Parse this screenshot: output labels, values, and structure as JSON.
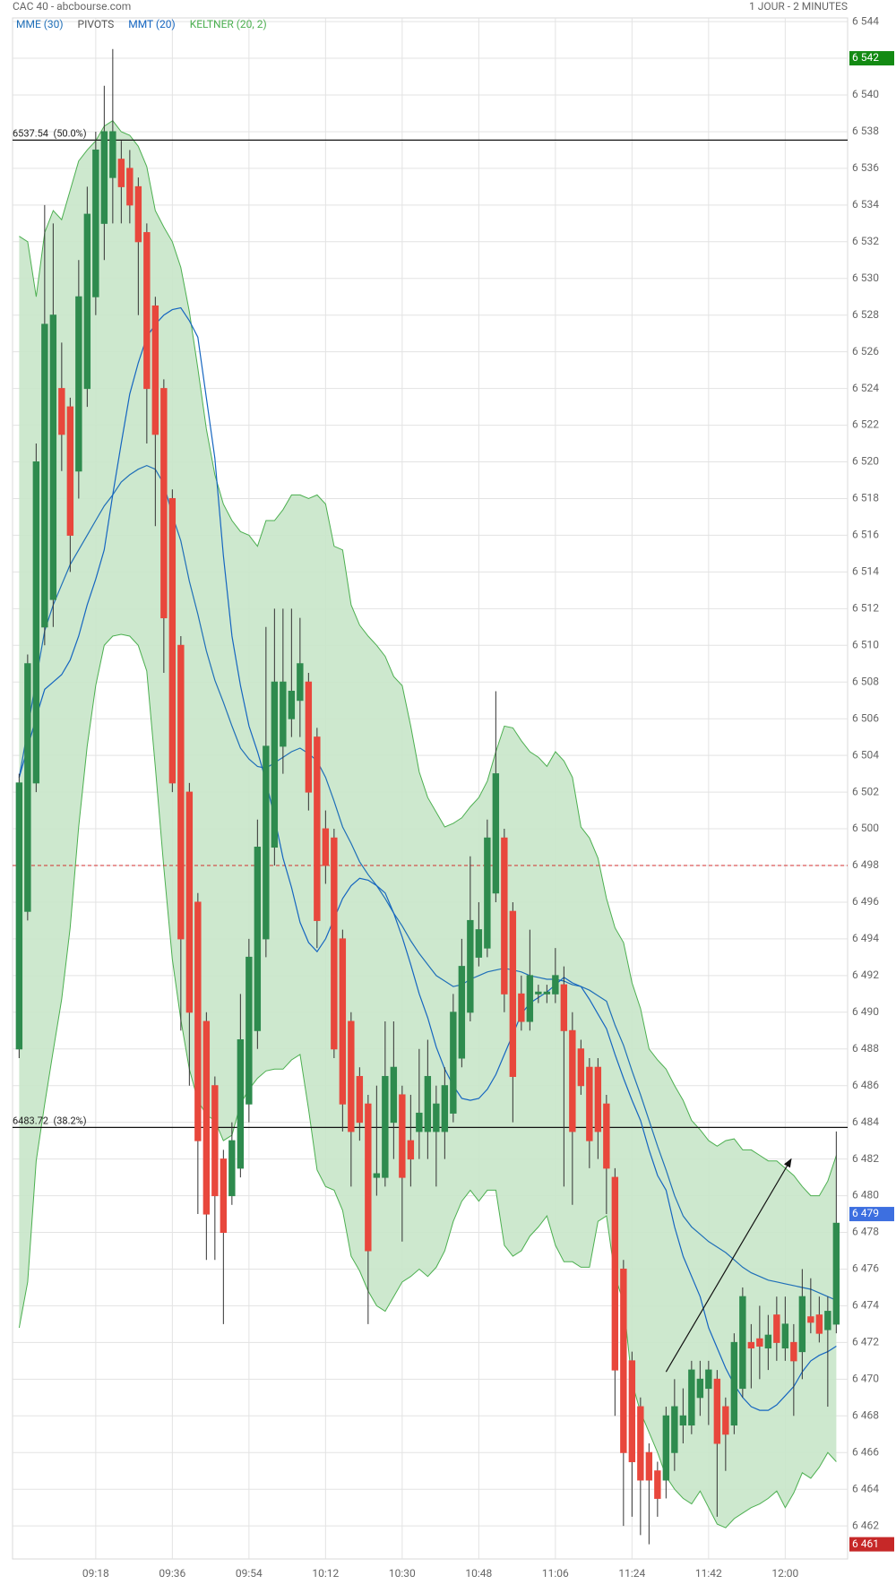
{
  "header": {
    "title": "CAC 40 - abcbourse.com",
    "period": "1 JOUR - 2 MINUTES"
  },
  "chart_data": {
    "type": "candlestick",
    "categories": [
      null,
      null,
      null,
      null,
      null,
      null,
      null,
      null,
      null,
      "09:18",
      null,
      null,
      null,
      null,
      null,
      null,
      null,
      null,
      "09:36",
      null,
      null,
      null,
      null,
      null,
      null,
      null,
      null,
      "09:54",
      null,
      null,
      null,
      null,
      null,
      null,
      null,
      null,
      "10:12",
      null,
      null,
      null,
      null,
      null,
      null,
      null,
      null,
      "10:30",
      null,
      null,
      null,
      null,
      null,
      null,
      null,
      null,
      "10:48",
      null,
      null,
      null,
      null,
      null,
      null,
      null,
      null,
      "11:06",
      null,
      null,
      null,
      null,
      null,
      null,
      null,
      null,
      "11:24",
      null,
      null,
      null,
      null,
      null,
      null,
      null,
      null,
      "11:42",
      null,
      null,
      null,
      null,
      null,
      null,
      null,
      null,
      "12:00",
      null,
      null,
      null,
      null,
      null,
      null
    ],
    "open": [
      6488,
      6495.5,
      6502.5,
      6511,
      6512.5,
      6524,
      6523,
      6519.5,
      6524,
      6529,
      6533,
      6535.5,
      6536.5,
      6536,
      6535,
      6532.5,
      6528.5,
      6524,
      6518,
      6510,
      6502,
      6496,
      6489.5,
      6486,
      6482,
      6480,
      6481.5,
      6485,
      6489,
      6494,
      6499,
      6504.5,
      6506,
      6507,
      6508,
      6505,
      6500,
      6499.5,
      6494,
      6489.5,
      6486.5,
      6485,
      6481,
      6481,
      6484,
      6485.5,
      6483,
      6483.5,
      6483.5,
      6483.5,
      6483.5,
      6484.5,
      6487.5,
      6490,
      6493,
      6493.5,
      6496.5,
      6499.5,
      6495.5,
      6491,
      6489.5,
      6491,
      6491,
      6491,
      6491.5,
      6489,
      6488,
      6487,
      6487,
      6485,
      6481,
      6476,
      6471,
      6468.5,
      6466,
      6465,
      6464.5,
      6466,
      6467.5,
      6467.5,
      6469,
      6469.5,
      6470,
      6468.5,
      6467.5,
      6469.5,
      6472,
      6472.2,
      6471.7,
      6473.5,
      6471.7,
      6472,
      6471.5,
      6473.4,
      6473.5,
      6472.7,
      6473
    ],
    "high": [
      6503,
      6509.5,
      6521,
      6534,
      6533,
      6526.5,
      6523.5,
      6531,
      6535,
      6538,
      6540.5,
      6542.5,
      6537.5,
      6537,
      6535.5,
      6533,
      6529,
      6524.5,
      6518.5,
      6510.5,
      6502.5,
      6496.5,
      6490,
      6486.5,
      6482.5,
      6484,
      6491,
      6494,
      6500.5,
      6511,
      6512,
      6512,
      6512,
      6511.5,
      6508.5,
      6505.5,
      6501,
      6500,
      6494.5,
      6490,
      6487,
      6485.5,
      6486,
      6489.5,
      6489.5,
      6486,
      6485.5,
      6488,
      6488.5,
      6486,
      6487,
      6491,
      6494,
      6498.5,
      6496,
      6500.5,
      6507.5,
      6500,
      6496,
      6492,
      6494.5,
      6491.5,
      6491.5,
      6493.5,
      6492.5,
      6490,
      6488.5,
      6487.5,
      6487.5,
      6485.5,
      6481.5,
      6476.5,
      6471.5,
      6469,
      6466.5,
      6465.5,
      6468.5,
      6470,
      6469.5,
      6471,
      6471,
      6471,
      6470.5,
      6469,
      6472.5,
      6475,
      6473,
      6474,
      6473.5,
      6474.5,
      6474.5,
      6473,
      6476,
      6475.5,
      6474.5,
      6474.5,
      6483.5
    ],
    "low": [
      6487.5,
      6495,
      6502,
      6510,
      6511,
      6519.5,
      6514,
      6518,
      6523,
      6528,
      6531,
      6533,
      6533,
      6533,
      6528,
      6521,
      6516.5,
      6508.5,
      6502,
      6489,
      6486,
      6479,
      6476.5,
      6476.5,
      6473,
      6479.5,
      6481,
      6484,
      6488,
      6493,
      6498,
      6503,
      6505,
      6505,
      6501,
      6493.5,
      6497,
      6487.5,
      6483.5,
      6480.5,
      6483,
      6473,
      6480,
      6480.5,
      6482,
      6477.5,
      6480.5,
      6482,
      6482,
      6480.5,
      6482,
      6484,
      6487,
      6489.5,
      6492.5,
      6493,
      6496,
      6490,
      6484,
      6489,
      6489,
      6490.5,
      6490.5,
      6490.5,
      6480.5,
      6479.5,
      6485.5,
      6481.5,
      6482,
      6479,
      6468,
      6462,
      6462.5,
      6461.5,
      6461,
      6462.5,
      6463.5,
      6465,
      6466.5,
      6467,
      6468,
      6467.5,
      6462.5,
      6465,
      6467,
      6469,
      6469.5,
      6470,
      6470.5,
      6471,
      6471,
      6468,
      6470,
      6472.5,
      6472,
      6468.5,
      6472.5
    ],
    "close": [
      6502.5,
      6509,
      6520,
      6527.5,
      6528,
      6521.5,
      6516,
      6529,
      6533.5,
      6537,
      6538,
      6538,
      6535,
      6534,
      6532,
      6524,
      6521.5,
      6511.5,
      6502.5,
      6494,
      6490,
      6483,
      6479,
      6480,
      6478,
      6483,
      6488.5,
      6493,
      6499,
      6504.5,
      6508,
      6508,
      6507.5,
      6509,
      6502,
      6495,
      6498,
      6488,
      6485,
      6483.5,
      6484,
      6477,
      6481.2,
      6486.5,
      6487,
      6481,
      6482,
      6484.5,
      6486.5,
      6485,
      6486,
      6490,
      6492.5,
      6495,
      6494.5,
      6499.5,
      6503,
      6491,
      6486.5,
      6489.5,
      6492,
      6491.1,
      6491.1,
      6492,
      6489,
      6483.5,
      6486,
      6483,
      6483.5,
      6481.5,
      6470.5,
      6466,
      6465.5,
      6464.5,
      6464.5,
      6463.5,
      6468,
      6468.5,
      6468,
      6470.5,
      6470,
      6470.5,
      6466.5,
      6467,
      6472,
      6474.5,
      6471.7,
      6471.8,
      6472.4,
      6472,
      6473,
      6471,
      6474.5,
      6473.1,
      6472.5,
      6473.7,
      6478.5
    ],
    "up_color": "#2e8b4e",
    "down_color": "#e8473c",
    "ylim": [
      6460.2,
      6544.2
    ],
    "yticks": [
      {
        "value": 6462,
        "label": "6 462"
      },
      {
        "value": 6464,
        "label": "6 464"
      },
      {
        "value": 6466,
        "label": "6 466"
      },
      {
        "value": 6468,
        "label": "6 468"
      },
      {
        "value": 6470,
        "label": "6 470"
      },
      {
        "value": 6472,
        "label": "6 472"
      },
      {
        "value": 6474,
        "label": "6 474"
      },
      {
        "value": 6476,
        "label": "6 476"
      },
      {
        "value": 6478,
        "label": "6 478"
      },
      {
        "value": 6480,
        "label": "6 480"
      },
      {
        "value": 6482,
        "label": "6 482"
      },
      {
        "value": 6484,
        "label": "6 484"
      },
      {
        "value": 6486,
        "label": "6 486"
      },
      {
        "value": 6488,
        "label": "6 488"
      },
      {
        "value": 6490,
        "label": "6 490"
      },
      {
        "value": 6492,
        "label": "6 492"
      },
      {
        "value": 6494,
        "label": "6 494"
      },
      {
        "value": 6496,
        "label": "6 496"
      },
      {
        "value": 6498,
        "label": "6 498"
      },
      {
        "value": 6500,
        "label": "6 500"
      },
      {
        "value": 6502,
        "label": "6 502"
      },
      {
        "value": 6504,
        "label": "6 504"
      },
      {
        "value": 6506,
        "label": "6 506"
      },
      {
        "value": 6508,
        "label": "6 508"
      },
      {
        "value": 6510,
        "label": "6 510"
      },
      {
        "value": 6512,
        "label": "6 512"
      },
      {
        "value": 6514,
        "label": "6 514"
      },
      {
        "value": 6516,
        "label": "6 516"
      },
      {
        "value": 6518,
        "label": "6 518"
      },
      {
        "value": 6520,
        "label": "6 520"
      },
      {
        "value": 6522,
        "label": "6 522"
      },
      {
        "value": 6524,
        "label": "6 524"
      },
      {
        "value": 6526,
        "label": "6 526"
      },
      {
        "value": 6528,
        "label": "6 528"
      },
      {
        "value": 6530,
        "label": "6 530"
      },
      {
        "value": 6532,
        "label": "6 532"
      },
      {
        "value": 6534,
        "label": "6 534"
      },
      {
        "value": 6536,
        "label": "6 536"
      },
      {
        "value": 6538,
        "label": "6 538"
      },
      {
        "value": 6540,
        "label": "6 540"
      },
      {
        "value": 6542,
        "label": "6 542"
      },
      {
        "value": 6544,
        "label": "6 544"
      }
    ],
    "grid": true,
    "lines": [
      {
        "name": "MME (30)",
        "color": "#1f6fb8",
        "values": [
          6502.8,
          6505.4,
          6508.2,
          6510.8,
          6512.2,
          6513.3,
          6514.4,
          6515.2,
          6516,
          6516.8,
          6517.6,
          6518.2,
          6518.9,
          6519.3,
          6519.6,
          6519.8,
          6519.6,
          6518.8,
          6517.1,
          6515.7,
          6513.5,
          6511.7,
          6509.7,
          6508.1,
          6506.9,
          6505.6,
          6504.4,
          6503.8,
          6503.4,
          6503.3,
          6503.6,
          6503.9,
          6504.2,
          6504.4,
          6504.1,
          6503.7,
          6502.8,
          6501.5,
          6500.1,
          6499.2,
          6498.2,
          6497.5,
          6496.9,
          6496.2,
          6495.4,
          6494.7,
          6493.9,
          6493.2,
          6492.6,
          6492,
          6491.7,
          6491.4,
          6491.5,
          6491.8,
          6492,
          6492.2,
          6492.3,
          6492.4,
          6492.3,
          6492.2,
          6492,
          6491.9,
          6491.8,
          6491.8,
          6491.7,
          6491.5,
          6491.4,
          6491.2,
          6490.9,
          6490.6,
          6489.3,
          6488.2,
          6486.8,
          6485.5,
          6484.1,
          6482.7,
          6481.4,
          6480,
          6478.9,
          6478.3,
          6477.9,
          6477.5,
          6477.2,
          6476.9,
          6476.5,
          6476.1,
          6475.8,
          6475.6,
          6475.4,
          6475.3,
          6475.2,
          6475.1,
          6475,
          6474.9,
          6474.7,
          6474.5,
          6474.3
        ]
      },
      {
        "name": "MMT (20)",
        "color": "#1565c0",
        "values": [
          6502.8,
          6504.4,
          6506.1,
          6507.6,
          6508,
          6508.4,
          6509.2,
          6510.5,
          6512.2,
          6513.6,
          6515.2,
          6518.2,
          6521,
          6523.7,
          6525.4,
          6526.8,
          6527.5,
          6528,
          6528.3,
          6528.4,
          6527.7,
          6526.8,
          6523.5,
          6520.2,
          6514.9,
          6510.5,
          6507.8,
          6505.6,
          6504.2,
          6502.6,
          6500.6,
          6498.4,
          6496.8,
          6494.9,
          6493.8,
          6493.3,
          6494,
          6495.1,
          6496.2,
          6496.9,
          6497.3,
          6497.2,
          6496.9,
          6496.5,
          6495.4,
          6494.1,
          6492.6,
          6491,
          6489.7,
          6488.1,
          6486.9,
          6486,
          6485.3,
          6485.2,
          6485.3,
          6485.8,
          6486.6,
          6487.7,
          6488.8,
          6489.9,
          6490.5,
          6490.8,
          6491.1,
          6491.5,
          6491.9,
          6491.6,
          6491.4,
          6490.7,
          6489.9,
          6489.1,
          6487.7,
          6486.4,
          6485.2,
          6484.1,
          6482.5,
          6481.1,
          6480.3,
          6478.3,
          6476.7,
          6475.6,
          6474.5,
          6472.8,
          6471.7,
          6470.6,
          6469.7,
          6469,
          6468.5,
          6468.3,
          6468.3,
          6468.6,
          6469.1,
          6469.6,
          6470.4,
          6471,
          6471.3,
          6471.5,
          6471.8
        ]
      }
    ],
    "pivot": {
      "name": "PIVOTS",
      "color": "#d32f2f",
      "legend_color": "#555555",
      "value": 6498
    },
    "keltner": {
      "name": "KELTNER (20, 2)",
      "color": "#4caf50",
      "fill": "#c8e6c9",
      "upper": [
        6532.3,
        6532,
        6529,
        6532.5,
        6533.7,
        6533.2,
        6534.8,
        6536.4,
        6537,
        6537.5,
        6538.3,
        6538.6,
        6538,
        6537.8,
        6537.2,
        6536.1,
        6533.7,
        6532.8,
        6532,
        6530.6,
        6528.2,
        6525.1,
        6521.8,
        6519.3,
        6517.7,
        6516.8,
        6516.2,
        6516,
        6515.4,
        6516.8,
        6516.8,
        6517.4,
        6518.2,
        6518.2,
        6518,
        6518.2,
        6517.7,
        6515.4,
        6515.2,
        6512.2,
        6511.1,
        6510.5,
        6510,
        6509.4,
        6508.3,
        6507.8,
        6505.6,
        6503.1,
        6501.7,
        6500.9,
        6500.1,
        6500.3,
        6500.6,
        6501.2,
        6501.7,
        6502.6,
        6504.2,
        6505.6,
        6505.5,
        6504.8,
        6504.2,
        6503.9,
        6503.4,
        6504.2,
        6503.7,
        6502.8,
        6500.1,
        6499.5,
        6498.4,
        6496.2,
        6494.6,
        6493.8,
        6491.6,
        6490.2,
        6488,
        6487.4,
        6486.9,
        6486,
        6485.2,
        6484.1,
        6483.6,
        6483,
        6482.7,
        6483,
        6483.1,
        6482.5,
        6482.5,
        6482.2,
        6481.9,
        6481.9,
        6481.5,
        6481.1,
        6480.5,
        6480,
        6480,
        6480.8,
        6482.2
      ],
      "lower": [
        6472.8,
        6475.3,
        6481.9,
        6485,
        6487.9,
        6490.7,
        6494.6,
        6500.1,
        6504.5,
        6507.8,
        6510,
        6510.5,
        6510.6,
        6510.5,
        6510,
        6508.6,
        6503.4,
        6497.9,
        6492.9,
        6489.6,
        6486.9,
        6485.2,
        6484.4,
        6484.1,
        6483,
        6483.3,
        6485,
        6485.8,
        6486.4,
        6486.8,
        6486.9,
        6486.9,
        6487.4,
        6487.7,
        6484.7,
        6481.4,
        6480.5,
        6480.3,
        6479.2,
        6476.7,
        6475.9,
        6474.8,
        6474,
        6473.7,
        6474.5,
        6475.3,
        6475.6,
        6476,
        6475.6,
        6476.1,
        6477,
        6478.6,
        6479.7,
        6480.3,
        6479.7,
        6480.3,
        6480.3,
        6477.3,
        6476.7,
        6477,
        6477.8,
        6478.3,
        6478.9,
        6477.3,
        6476.4,
        6476.4,
        6476.1,
        6476.1,
        6478.6,
        6478.9,
        6475.6,
        6474.2,
        6469.8,
        6468.2,
        6467.1,
        6466,
        6464.7,
        6464,
        6463.5,
        6463.2,
        6463.9,
        6463,
        6462.1,
        6461.9,
        6462.4,
        6462.7,
        6463,
        6463.2,
        6463.5,
        6463.9,
        6463,
        6463.8,
        6464.9,
        6464.6,
        6465.2,
        6466,
        6465.5
      ]
    },
    "levels": [
      {
        "value": 6537.54,
        "label": "6537.54  (50.0%)"
      },
      {
        "value": 6483.72,
        "label": "6483.72  (38.2%)"
      }
    ],
    "price_tags": [
      {
        "value": 6542,
        "label": "6 542",
        "color": "#138a13"
      },
      {
        "value": 6479,
        "label": "6 479",
        "color": "#3d6fe0"
      },
      {
        "value": 6461,
        "label": "6 461",
        "color": "#c62828"
      }
    ],
    "arrow": {
      "x": [
        76,
        90.7
      ],
      "y": [
        6470.4,
        6482
      ]
    }
  }
}
